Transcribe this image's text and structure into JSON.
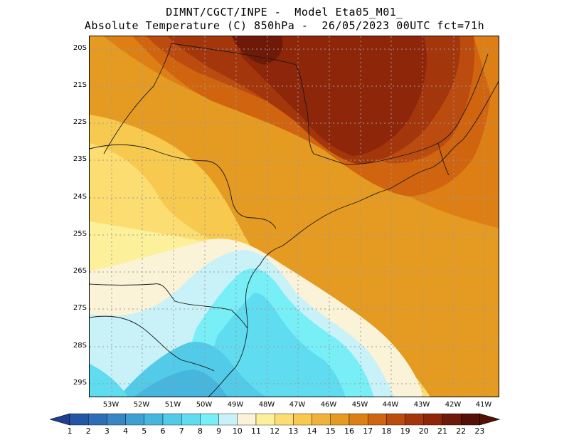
{
  "header": {
    "title_line1": "DIMNT/CGCT/INPE -  Model Eta05_M01_",
    "title_line2": "Absolute Temperature (C) 850hPa -  26/05/2023 00UTC fct=71h"
  },
  "axes": {
    "lat_labels": [
      "20S",
      "21S",
      "22S",
      "23S",
      "24S",
      "25S",
      "26S",
      "27S",
      "28S",
      "29S"
    ],
    "lon_labels": [
      "53W",
      "52W",
      "51W",
      "50W",
      "49W",
      "48W",
      "47W",
      "46W",
      "45W",
      "44W",
      "43W",
      "42W",
      "41W"
    ]
  },
  "colorbar": {
    "labels": [
      "1",
      "2",
      "3",
      "4",
      "5",
      "6",
      "7",
      "8",
      "9",
      "10",
      "11",
      "12",
      "13",
      "14",
      "15",
      "16",
      "17",
      "18",
      "19",
      "20",
      "21",
      "22",
      "23"
    ],
    "colors": [
      "#1f3f8f",
      "#2457a3",
      "#2d6eb4",
      "#3a86c4",
      "#3f9fd2",
      "#47b6de",
      "#52cbe8",
      "#5fdcef",
      "#78eef6",
      "#c8f2f8",
      "#fbf3d8",
      "#fdf09a",
      "#fbdd72",
      "#f7c94e",
      "#efb23a",
      "#e59a22",
      "#dd7f14",
      "#d0640f",
      "#bb4b0e",
      "#a4360c",
      "#8e260a",
      "#6f1a08",
      "#541006"
    ]
  }
}
